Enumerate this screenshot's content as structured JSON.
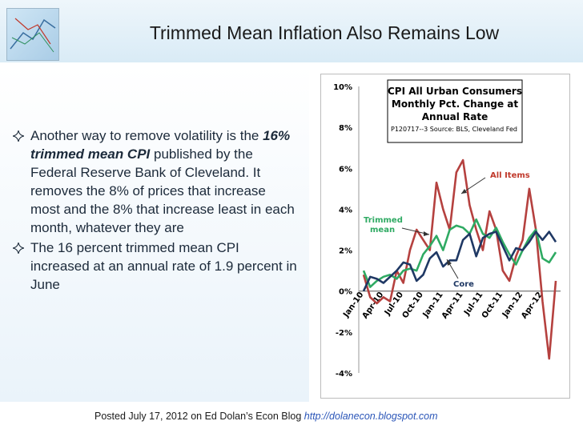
{
  "slide": {
    "title": "Trimmed Mean Inflation Also Remains Low",
    "bullets": [
      {
        "lead": "Another way to remove volatility is the",
        "emph": "16% trimmed mean CPI",
        "rest": "published by the Federal Reserve Bank of Cleveland. It removes the 8% of prices that increase most and the 8% that increase least in each month, whatever they are"
      },
      {
        "lead": "The 16 percent trimmed mean CPI increased at an annual rate of 1.9 percent in June",
        "emph": "",
        "rest": ""
      }
    ],
    "footer_text": "Posted July 17, 2012 on Ed Dolan’s Econ Blog",
    "footer_link": "http://dolanecon.blogspot.com"
  },
  "chart_data": {
    "type": "line",
    "title_lines": [
      "CPI All Urban Consumers",
      "Monthly Pct. Change at",
      "Annual Rate"
    ],
    "source": "P120717--3 Source: BLS, Cleveland Fed",
    "ylim": [
      -4,
      10
    ],
    "yticks": [
      "-4%",
      "-2%",
      "0%",
      "2%",
      "4%",
      "6%",
      "8%",
      "10%"
    ],
    "ytick_values": [
      -4,
      -2,
      0,
      2,
      4,
      6,
      8,
      10
    ],
    "x_labels": [
      "Jan-10",
      "Apr-10",
      "Jul-10",
      "Oct-10",
      "Jan-11",
      "Apr-11",
      "Jul-11",
      "Oct-11",
      "Jan-12",
      "Apr-12"
    ],
    "x_label_index": [
      0,
      3,
      6,
      9,
      12,
      15,
      18,
      21,
      24,
      27
    ],
    "n_points": 30,
    "series": [
      {
        "name": "All Items",
        "color": "#b5413f",
        "values": [
          0.8,
          -0.3,
          -0.6,
          -0.3,
          -0.5,
          1.0,
          0.4,
          2.0,
          3.0,
          2.5,
          2.0,
          5.3,
          4.0,
          3.0,
          5.8,
          6.4,
          4.2,
          3.0,
          2.0,
          3.9,
          3.0,
          1.0,
          0.5,
          1.7,
          2.5,
          5.0,
          3.0,
          -0.5,
          -3.3,
          0.5
        ]
      },
      {
        "name": "Trimmed mean",
        "color": "#2faa63",
        "values": [
          1.0,
          0.2,
          0.5,
          0.7,
          0.8,
          0.6,
          1.0,
          1.1,
          1.0,
          1.8,
          2.2,
          2.7,
          2.0,
          3.0,
          3.2,
          3.1,
          2.8,
          3.5,
          2.8,
          2.6,
          3.1,
          2.4,
          1.8,
          1.3,
          2.0,
          2.6,
          3.0,
          1.6,
          1.4,
          1.9
        ]
      },
      {
        "name": "Core",
        "color": "#1f3864",
        "values": [
          0.0,
          0.7,
          0.6,
          0.4,
          0.7,
          1.0,
          1.4,
          1.3,
          0.5,
          0.8,
          1.6,
          1.9,
          1.2,
          1.5,
          1.5,
          2.5,
          2.8,
          1.7,
          2.6,
          2.8,
          2.9,
          2.2,
          1.5,
          2.1,
          2.0,
          2.4,
          2.9,
          2.5,
          2.9,
          2.4
        ]
      }
    ],
    "annotations": [
      {
        "text": "All Items",
        "color": "#c0392b"
      },
      {
        "text": "Trimmed",
        "color": "#2faa63"
      },
      {
        "text": "mean",
        "color": "#2faa63"
      },
      {
        "text": "Core",
        "color": "#1f3864"
      }
    ]
  }
}
